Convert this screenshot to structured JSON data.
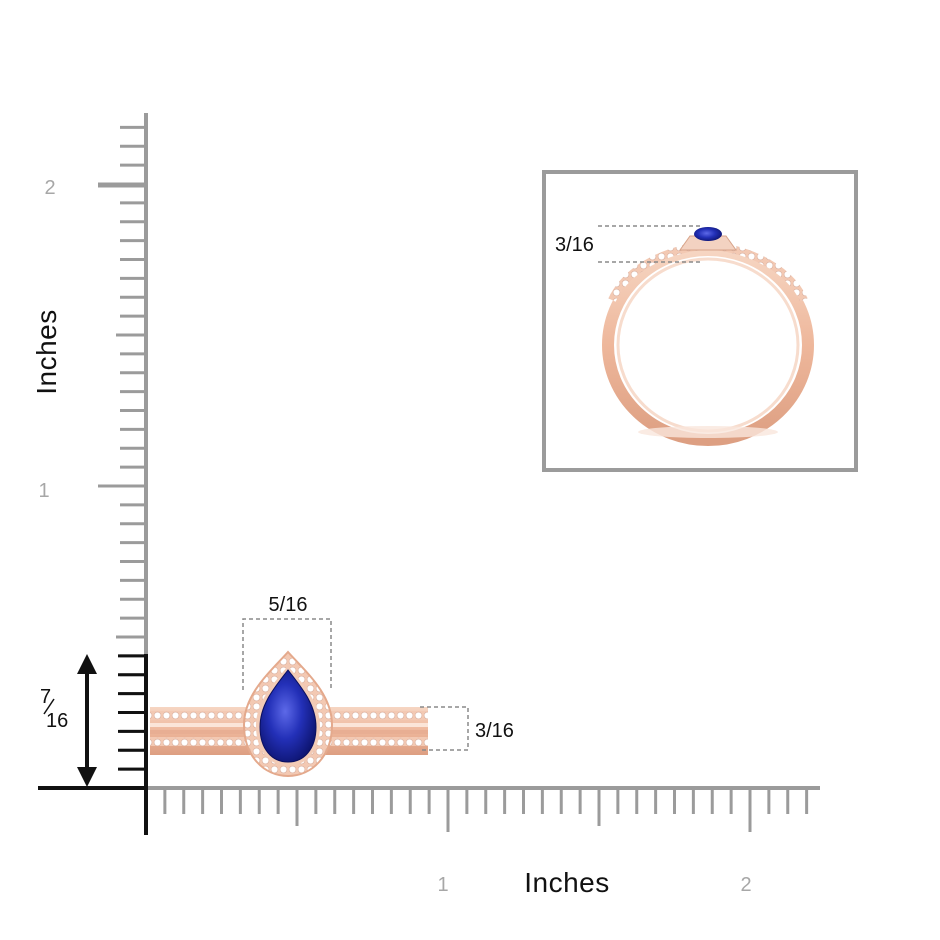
{
  "axes": {
    "y_title": "Inches",
    "x_title": "Inches",
    "y_tick_labels": [
      "1",
      "2"
    ],
    "x_tick_labels": [
      "1",
      "2"
    ]
  },
  "dimensions": {
    "top_width": "5/16",
    "band_height": "3/16",
    "ring_height_numerator": "7",
    "ring_height_denominator": "16",
    "inset_height": "3/16"
  },
  "colors": {
    "axis": "#9b9b9b",
    "tick_label": "#a7a7a7",
    "rose_gold": "#f0c0a6",
    "gem": "#1f2ab5",
    "frame": "#9b9b9b"
  },
  "icons": {
    "height_arrow": "double-arrow-vertical-icon",
    "gem": "pear-gem-icon",
    "ring": "ring-side-view-icon"
  }
}
